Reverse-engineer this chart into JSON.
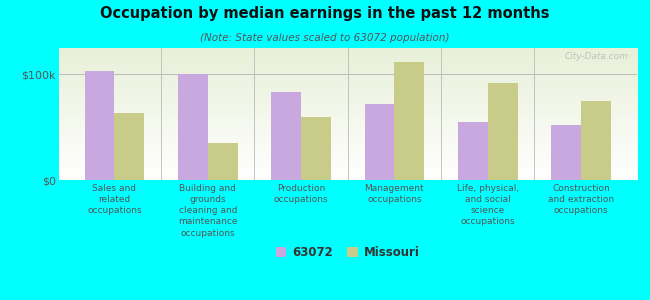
{
  "title": "Occupation by median earnings in the past 12 months",
  "subtitle": "(Note: State values scaled to 63072 population)",
  "categories": [
    "Sales and\nrelated\noccupations",
    "Building and\ngrounds\ncleaning and\nmaintenance\noccupations",
    "Production\noccupations",
    "Management\noccupations",
    "Life, physical,\nand social\nscience\noccupations",
    "Construction\nand extraction\noccupations"
  ],
  "values_63072": [
    103000,
    100000,
    83000,
    72000,
    55000,
    52000
  ],
  "values_missouri": [
    63000,
    35000,
    60000,
    112000,
    92000,
    75000
  ],
  "color_63072": "#c9a8e0",
  "color_missouri": "#c8cc88",
  "yticks": [
    0,
    100000
  ],
  "ytick_labels": [
    "$0",
    "$100k"
  ],
  "background_color": "#00ffff",
  "watermark": "City-Data.com",
  "legend_label_63072": "63072",
  "legend_label_missouri": "Missouri",
  "ylim": [
    0,
    125000
  ]
}
